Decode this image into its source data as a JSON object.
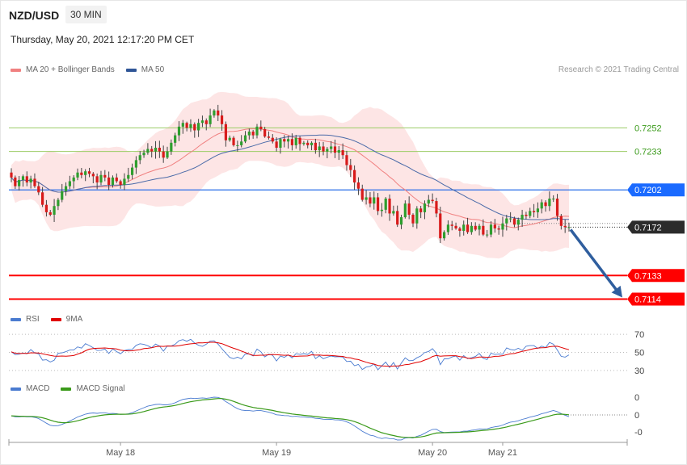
{
  "header": {
    "symbol": "NZD/USD",
    "timeframe": "30 MIN",
    "datetime": "Thursday, May 20, 2021 12:17:20 PM CET",
    "copyright": "Research © 2021 Trading Central"
  },
  "legends": {
    "price": [
      {
        "label": "MA 20 + Bollinger Bands",
        "color": "#f08080"
      },
      {
        "label": "MA 50",
        "color": "#2f5597"
      }
    ],
    "rsi": [
      {
        "label": "RSI",
        "color": "#4a7bd0"
      },
      {
        "label": "9MA",
        "color": "#e00000"
      }
    ],
    "macd": [
      {
        "label": "MACD",
        "color": "#4a7bd0"
      },
      {
        "label": "MACD Signal",
        "color": "#3a9a1a"
      }
    ]
  },
  "chart_data": {
    "type": "candlestick",
    "price_range": [
      0.71,
      0.729
    ],
    "levels": [
      {
        "value": 0.7252,
        "label": "0.7252",
        "kind": "target-green"
      },
      {
        "value": 0.7233,
        "label": "0.7233",
        "kind": "target-green"
      },
      {
        "value": 0.7202,
        "label": "0.7202",
        "kind": "pivot-blue"
      },
      {
        "value": 0.7172,
        "label": "0.7172",
        "kind": "last-price"
      },
      {
        "value": 0.7133,
        "label": "0.7133",
        "kind": "target-red"
      },
      {
        "value": 0.7114,
        "label": "0.7114",
        "kind": "target-red"
      }
    ],
    "projection": {
      "from": 0.717,
      "to": 0.7114,
      "color": "#2f5e9e"
    },
    "close": [
      0.7212,
      0.7205,
      0.721,
      0.7213,
      0.7208,
      0.7211,
      0.7205,
      0.72,
      0.719,
      0.7184,
      0.7182,
      0.7189,
      0.7194,
      0.7201,
      0.7205,
      0.7209,
      0.7212,
      0.7216,
      0.7214,
      0.7217,
      0.7215,
      0.7213,
      0.7208,
      0.7214,
      0.7212,
      0.7206,
      0.7212,
      0.7209,
      0.7206,
      0.7211,
      0.7214,
      0.722,
      0.7226,
      0.723,
      0.7232,
      0.7235,
      0.7233,
      0.7236,
      0.7233,
      0.7228,
      0.7233,
      0.724,
      0.7246,
      0.7253,
      0.7256,
      0.7252,
      0.7255,
      0.725,
      0.7256,
      0.7258,
      0.7255,
      0.7262,
      0.7266,
      0.7262,
      0.7255,
      0.7242,
      0.7244,
      0.7238,
      0.7238,
      0.7241,
      0.7246,
      0.7249,
      0.7246,
      0.7253,
      0.7251,
      0.7245,
      0.7244,
      0.7241,
      0.7236,
      0.7243,
      0.7241,
      0.7243,
      0.7238,
      0.7244,
      0.7239,
      0.724,
      0.7238,
      0.724,
      0.7234,
      0.7237,
      0.7233,
      0.7235,
      0.7237,
      0.7232,
      0.7234,
      0.723,
      0.7222,
      0.7218,
      0.7208,
      0.7203,
      0.7194,
      0.7196,
      0.7191,
      0.7196,
      0.7185,
      0.7186,
      0.7195,
      0.7183,
      0.7185,
      0.7174,
      0.718,
      0.7191,
      0.7182,
      0.7175,
      0.7187,
      0.7184,
      0.7191,
      0.7194,
      0.7193,
      0.7183,
      0.7163,
      0.7168,
      0.7174,
      0.7173,
      0.7171,
      0.7169,
      0.7174,
      0.7168,
      0.7173,
      0.717,
      0.7173,
      0.7166,
      0.7166,
      0.7174,
      0.7171,
      0.717,
      0.7175,
      0.7179,
      0.7179,
      0.7174,
      0.7178,
      0.7182,
      0.7181,
      0.7185,
      0.7184,
      0.7187,
      0.7192,
      0.7189,
      0.7195,
      0.7195,
      0.7181,
      0.7173,
      0.7172,
      0.7172
    ],
    "dates": [
      {
        "label": "May 18",
        "index": 28
      },
      {
        "label": "May 19",
        "index": 68
      },
      {
        "label": "May 20",
        "index": 108
      },
      {
        "label": "May 21",
        "index": 126
      }
    ],
    "rsi": {
      "levels": [
        70,
        50,
        30
      ],
      "range": [
        20,
        80
      ]
    },
    "macd": {
      "level_labels": [
        "0",
        "0",
        "-0"
      ]
    }
  }
}
